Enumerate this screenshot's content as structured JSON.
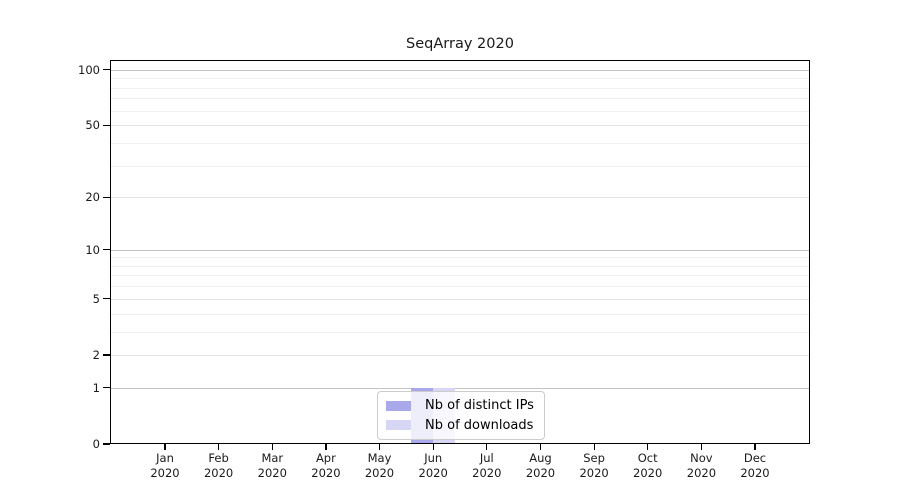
{
  "chart_data": {
    "type": "bar",
    "title": "SeqArray 2020",
    "x_categories": [
      {
        "month": "Jan",
        "year": "2020"
      },
      {
        "month": "Feb",
        "year": "2020"
      },
      {
        "month": "Mar",
        "year": "2020"
      },
      {
        "month": "Apr",
        "year": "2020"
      },
      {
        "month": "May",
        "year": "2020"
      },
      {
        "month": "Jun",
        "year": "2020"
      },
      {
        "month": "Jul",
        "year": "2020"
      },
      {
        "month": "Aug",
        "year": "2020"
      },
      {
        "month": "Sep",
        "year": "2020"
      },
      {
        "month": "Oct",
        "year": "2020"
      },
      {
        "month": "Nov",
        "year": "2020"
      },
      {
        "month": "Dec",
        "year": "2020"
      }
    ],
    "series": [
      {
        "name": "Nb of distinct IPs",
        "color": "#a8a8ea",
        "values": [
          0,
          0,
          0,
          0,
          0,
          1,
          0,
          0,
          0,
          0,
          0,
          0
        ]
      },
      {
        "name": "Nb of downloads",
        "color": "#d7d7f5",
        "values": [
          0,
          0,
          0,
          0,
          0,
          1,
          0,
          0,
          0,
          0,
          0,
          0
        ]
      }
    ],
    "y_axis": {
      "scale": "log1p",
      "ticks": [
        0,
        1,
        2,
        5,
        10,
        20,
        50,
        100
      ],
      "major_gridlines": [
        1,
        10,
        100
      ],
      "minor_gridlines": [
        3,
        4,
        6,
        7,
        8,
        9,
        30,
        40,
        60,
        70,
        80,
        90
      ],
      "max": 113
    },
    "x_axis": {
      "label": "",
      "tick_style": "two-line month/year"
    },
    "grid": "horizontal",
    "legend": {
      "position": "lower center",
      "entries": [
        "Nb of distinct IPs",
        "Nb of downloads"
      ]
    }
  }
}
